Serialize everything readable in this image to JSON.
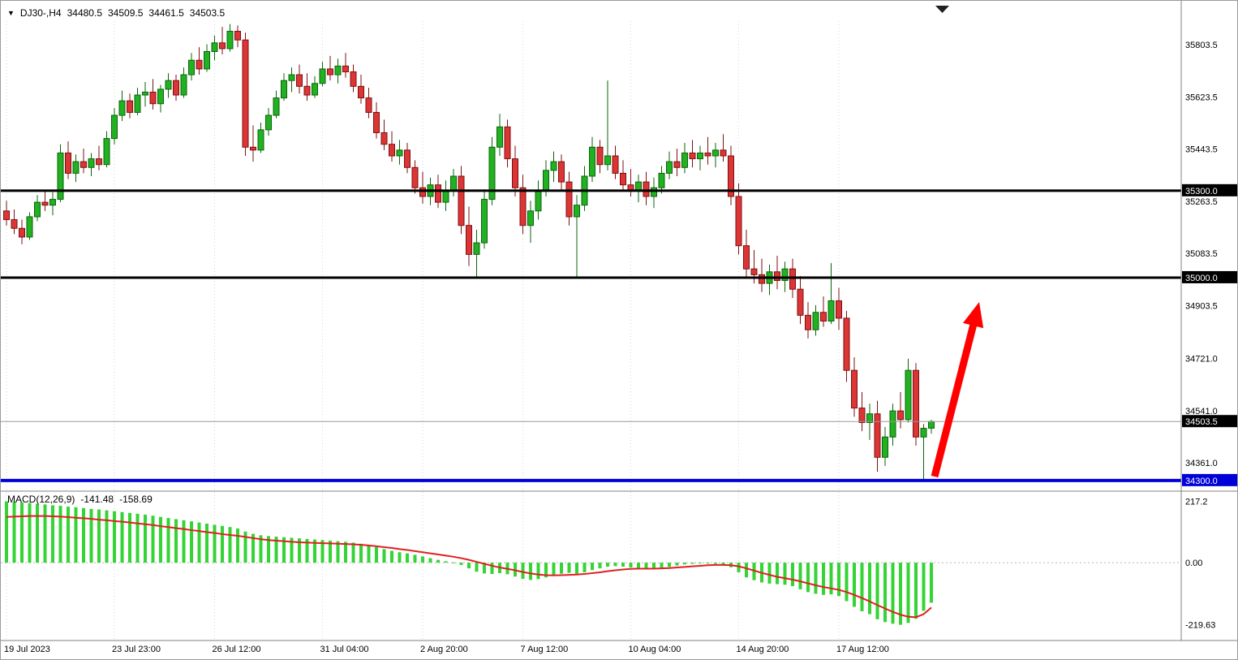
{
  "chart_header": {
    "symbol_period": "DJ30-,H4",
    "open": "34480.5",
    "high": "34509.5",
    "low": "34461.5",
    "close": "34503.5"
  },
  "macd_header": {
    "label": "MACD(12,26,9)",
    "macd_value": "-141.48",
    "signal_value": "-158.69"
  },
  "colors": {
    "bull": "#21B121",
    "bull_border": "#0B640B",
    "bear": "#DC3535",
    "bear_border": "#7E1010",
    "macd_bar": "#33D433",
    "signal": "#E02020",
    "grid": "#D6D6D6",
    "frame": "#808080",
    "level_black": "#000000",
    "level_blue": "#0000D8",
    "current_line": "#9A9A9A",
    "arrow": "#FF0000",
    "axis_text": "#000000"
  },
  "chart_data": {
    "type": "candlestick",
    "symbol": "DJ30-",
    "timeframe": "H4",
    "price_range": [
      34280,
      35885
    ],
    "price_axis": {
      "ticks": [
        {
          "value": 35803.5,
          "label": "35803.5"
        },
        {
          "value": 35623.5,
          "label": "35623.5"
        },
        {
          "value": 35443.5,
          "label": "35443.5"
        },
        {
          "value": 35263.5,
          "label": "35263.5"
        },
        {
          "value": 35083.5,
          "label": "35083.5"
        },
        {
          "value": 34903.5,
          "label": "34903.5"
        },
        {
          "value": 34721.0,
          "label": "34721.0"
        },
        {
          "value": 34541.0,
          "label": "34541.0"
        },
        {
          "value": 34361.0,
          "label": "34361.0"
        }
      ]
    },
    "levels": [
      {
        "value": 35300.0,
        "label": "35300.0",
        "style": "resistance",
        "color": "#000000",
        "width": 3
      },
      {
        "value": 35000.0,
        "label": "35000.0",
        "style": "resistance",
        "color": "#000000",
        "width": 3
      },
      {
        "value": 34300.0,
        "label": "34300.0",
        "style": "support",
        "color": "#0000D8",
        "width": 4
      },
      {
        "value": 34503.5,
        "label": "34503.5",
        "style": "current-price",
        "color": "#000000",
        "width": 1
      }
    ],
    "time_axis": {
      "ticks": [
        {
          "index": 0,
          "label": "19 Jul 2023"
        },
        {
          "index": 14,
          "label": "23 Jul 23:00"
        },
        {
          "index": 27,
          "label": "26 Jul 12:00"
        },
        {
          "index": 41,
          "label": "31 Jul 04:00"
        },
        {
          "index": 54,
          "label": "2 Aug 20:00"
        },
        {
          "index": 67,
          "label": "7 Aug 12:00"
        },
        {
          "index": 81,
          "label": "10 Aug 04:00"
        },
        {
          "index": 95,
          "label": "14 Aug 20:00"
        },
        {
          "index": 108,
          "label": "17 Aug 12:00"
        }
      ]
    },
    "candles": [
      [
        35230,
        35265,
        35180,
        35200
      ],
      [
        35200,
        35235,
        35150,
        35170
      ],
      [
        35170,
        35200,
        35115,
        35140
      ],
      [
        35140,
        35225,
        35130,
        35210
      ],
      [
        35210,
        35285,
        35195,
        35260
      ],
      [
        35260,
        35300,
        35230,
        35250
      ],
      [
        35250,
        35295,
        35215,
        35270
      ],
      [
        35270,
        35460,
        35260,
        35430
      ],
      [
        35430,
        35470,
        35340,
        35360
      ],
      [
        35360,
        35425,
        35330,
        35400
      ],
      [
        35400,
        35445,
        35360,
        35380
      ],
      [
        35380,
        35430,
        35350,
        35410
      ],
      [
        35410,
        35455,
        35370,
        35390
      ],
      [
        35390,
        35505,
        35380,
        35480
      ],
      [
        35480,
        35585,
        35460,
        35560
      ],
      [
        35560,
        35645,
        35540,
        35610
      ],
      [
        35610,
        35635,
        35550,
        35570
      ],
      [
        35570,
        35655,
        35560,
        35630
      ],
      [
        35630,
        35675,
        35590,
        35640
      ],
      [
        35640,
        35685,
        35580,
        35600
      ],
      [
        35600,
        35665,
        35570,
        35650
      ],
      [
        35650,
        35705,
        35620,
        35680
      ],
      [
        35680,
        35700,
        35610,
        35630
      ],
      [
        35630,
        35725,
        35620,
        35700
      ],
      [
        35700,
        35775,
        35680,
        35750
      ],
      [
        35750,
        35795,
        35700,
        35720
      ],
      [
        35720,
        35805,
        35710,
        35780
      ],
      [
        35780,
        35835,
        35750,
        35810
      ],
      [
        35810,
        35865,
        35770,
        35790
      ],
      [
        35790,
        35875,
        35780,
        35850
      ],
      [
        35850,
        35870,
        35795,
        35820
      ],
      [
        35820,
        35845,
        35420,
        35450
      ],
      [
        35450,
        35525,
        35400,
        35440
      ],
      [
        35440,
        35535,
        35430,
        35510
      ],
      [
        35510,
        35585,
        35490,
        35560
      ],
      [
        35560,
        35645,
        35550,
        35620
      ],
      [
        35620,
        35705,
        35610,
        35680
      ],
      [
        35680,
        35725,
        35640,
        35700
      ],
      [
        35700,
        35735,
        35635,
        35660
      ],
      [
        35660,
        35705,
        35610,
        35630
      ],
      [
        35630,
        35695,
        35620,
        35670
      ],
      [
        35670,
        35745,
        35660,
        35720
      ],
      [
        35720,
        35765,
        35680,
        35700
      ],
      [
        35700,
        35755,
        35670,
        35730
      ],
      [
        35730,
        35775,
        35690,
        35710
      ],
      [
        35710,
        35735,
        35640,
        35660
      ],
      [
        35660,
        35700,
        35600,
        35620
      ],
      [
        35620,
        35655,
        35550,
        35570
      ],
      [
        35570,
        35605,
        35480,
        35500
      ],
      [
        35500,
        35545,
        35440,
        35460
      ],
      [
        35460,
        35505,
        35400,
        35420
      ],
      [
        35420,
        35475,
        35390,
        35440
      ],
      [
        35440,
        35465,
        35360,
        35380
      ],
      [
        35380,
        35405,
        35290,
        35310
      ],
      [
        35310,
        35365,
        35255,
        35280
      ],
      [
        35280,
        35345,
        35250,
        35320
      ],
      [
        35320,
        35355,
        35240,
        35260
      ],
      [
        35260,
        35335,
        35230,
        35300
      ],
      [
        35300,
        35375,
        35280,
        35350
      ],
      [
        35350,
        35385,
        35150,
        35180
      ],
      [
        35180,
        35245,
        35040,
        35080
      ],
      [
        35080,
        35165,
        35000,
        35120
      ],
      [
        35120,
        35305,
        35100,
        35270
      ],
      [
        35270,
        35485,
        35250,
        35450
      ],
      [
        35450,
        35565,
        35420,
        35520
      ],
      [
        35520,
        35545,
        35380,
        35410
      ],
      [
        35410,
        35455,
        35280,
        35310
      ],
      [
        35310,
        35355,
        35150,
        35180
      ],
      [
        35180,
        35265,
        35120,
        35230
      ],
      [
        35230,
        35335,
        35200,
        35300
      ],
      [
        35300,
        35405,
        35280,
        35370
      ],
      [
        35370,
        35435,
        35330,
        35400
      ],
      [
        35400,
        35425,
        35300,
        35330
      ],
      [
        35330,
        35365,
        35180,
        35210
      ],
      [
        35210,
        35285,
        35000,
        35250
      ],
      [
        35250,
        35385,
        35230,
        35350
      ],
      [
        35350,
        35485,
        35330,
        35450
      ],
      [
        35450,
        35475,
        35360,
        35390
      ],
      [
        35390,
        35680,
        35370,
        35420
      ],
      [
        35420,
        35455,
        35340,
        35360
      ],
      [
        35360,
        35405,
        35300,
        35320
      ],
      [
        35320,
        35375,
        35280,
        35300
      ],
      [
        35300,
        35355,
        35260,
        35330
      ],
      [
        35330,
        35365,
        35250,
        35280
      ],
      [
        35280,
        35345,
        35240,
        35310
      ],
      [
        35310,
        35385,
        35290,
        35360
      ],
      [
        35360,
        35435,
        35340,
        35400
      ],
      [
        35400,
        35445,
        35350,
        35380
      ],
      [
        35380,
        35465,
        35360,
        35430
      ],
      [
        35430,
        35475,
        35380,
        35410
      ],
      [
        35410,
        35455,
        35370,
        35430
      ],
      [
        35430,
        35485,
        35390,
        35420
      ],
      [
        35420,
        35465,
        35380,
        35440
      ],
      [
        35440,
        35495,
        35400,
        35420
      ],
      [
        35420,
        35455,
        35250,
        35280
      ],
      [
        35280,
        35325,
        35080,
        35110
      ],
      [
        35110,
        35165,
        35000,
        35030
      ],
      [
        35030,
        35095,
        34980,
        35010
      ],
      [
        35010,
        35065,
        34950,
        34980
      ],
      [
        34980,
        35045,
        34940,
        35020
      ],
      [
        35020,
        35075,
        34960,
        34990
      ],
      [
        34990,
        35055,
        34950,
        35030
      ],
      [
        35030,
        35065,
        34930,
        34960
      ],
      [
        34960,
        35005,
        34840,
        34870
      ],
      [
        34870,
        34915,
        34790,
        34820
      ],
      [
        34820,
        34905,
        34800,
        34880
      ],
      [
        34880,
        34935,
        34830,
        34850
      ],
      [
        34850,
        35050,
        34840,
        34920
      ],
      [
        34920,
        34965,
        34820,
        34860
      ],
      [
        34860,
        34885,
        34640,
        34680
      ],
      [
        34680,
        34725,
        34520,
        34550
      ],
      [
        34550,
        34605,
        34470,
        34500
      ],
      [
        34500,
        34565,
        34440,
        34530
      ],
      [
        34530,
        34575,
        34330,
        34380
      ],
      [
        34380,
        34485,
        34350,
        34450
      ],
      [
        34450,
        34565,
        34420,
        34540
      ],
      [
        34540,
        34605,
        34480,
        34510
      ],
      [
        34510,
        34720,
        34500,
        34680
      ],
      [
        34680,
        34705,
        34420,
        34450
      ],
      [
        34450,
        34495,
        34295,
        34480
      ],
      [
        34480.5,
        34509.5,
        34461.5,
        34503.5
      ]
    ],
    "macd": {
      "label": "MACD(12,26,9)",
      "range": [
        -258,
        230
      ],
      "ticks": [
        {
          "value": 217.2,
          "label": "217.2"
        },
        {
          "value": 0,
          "label": "0.00"
        },
        {
          "value": -219.63,
          "label": "-219.63"
        }
      ],
      "histogram": [
        217,
        215,
        213,
        211,
        208,
        206,
        203,
        201,
        198,
        196,
        193,
        190,
        188,
        185,
        182,
        179,
        176,
        173,
        170,
        166,
        162,
        158,
        154,
        150,
        146,
        142,
        138,
        134,
        130,
        126,
        121,
        110,
        102,
        97,
        94,
        92,
        90,
        88,
        86,
        84,
        82,
        80,
        78,
        76,
        74,
        71,
        67,
        61,
        55,
        48,
        42,
        37,
        33,
        28,
        22,
        16,
        10,
        5,
        1,
        -8,
        -20,
        -32,
        -38,
        -40,
        -37,
        -41,
        -49,
        -57,
        -61,
        -58,
        -52,
        -45,
        -39,
        -36,
        -40,
        -34,
        -26,
        -20,
        -14,
        -12,
        -14,
        -17,
        -20,
        -22,
        -22,
        -19,
        -15,
        -10,
        -6,
        -4,
        -2,
        -2,
        -4,
        -7,
        -16,
        -34,
        -52,
        -62,
        -70,
        -74,
        -76,
        -78,
        -83,
        -94,
        -104,
        -110,
        -114,
        -112,
        -118,
        -136,
        -156,
        -172,
        -182,
        -200,
        -210,
        -216,
        -219.63,
        -213,
        -198,
        -170,
        -141.48
      ],
      "signal": [
        162,
        163,
        164,
        165,
        165,
        165,
        164,
        163,
        161,
        159,
        157,
        155,
        152,
        150,
        147,
        145,
        142,
        139,
        136,
        133,
        129,
        126,
        122,
        119,
        115,
        112,
        108,
        105,
        101,
        98,
        95,
        91,
        87,
        83,
        80,
        78,
        76,
        74,
        72,
        71,
        70,
        69,
        68,
        67,
        66,
        65,
        63,
        61,
        58,
        55,
        52,
        48,
        45,
        41,
        37,
        33,
        29,
        25,
        21,
        16,
        10,
        3,
        -4,
        -11,
        -17,
        -22,
        -27,
        -33,
        -38,
        -42,
        -44,
        -45,
        -44,
        -43,
        -42,
        -40,
        -37,
        -34,
        -30,
        -27,
        -24,
        -22,
        -21,
        -21,
        -21,
        -20,
        -19,
        -17,
        -15,
        -13,
        -11,
        -9,
        -8,
        -8,
        -9,
        -13,
        -20,
        -28,
        -36,
        -43,
        -50,
        -55,
        -60,
        -66,
        -73,
        -80,
        -86,
        -91,
        -96,
        -104,
        -114,
        -125,
        -137,
        -150,
        -162,
        -174,
        -184,
        -191,
        -193,
        -182,
        -158.69
      ]
    },
    "annotations": [
      {
        "type": "arrow",
        "color": "#FF0000",
        "from": [
          1151,
          586
        ],
        "to": [
          1206,
          371
        ]
      }
    ]
  }
}
